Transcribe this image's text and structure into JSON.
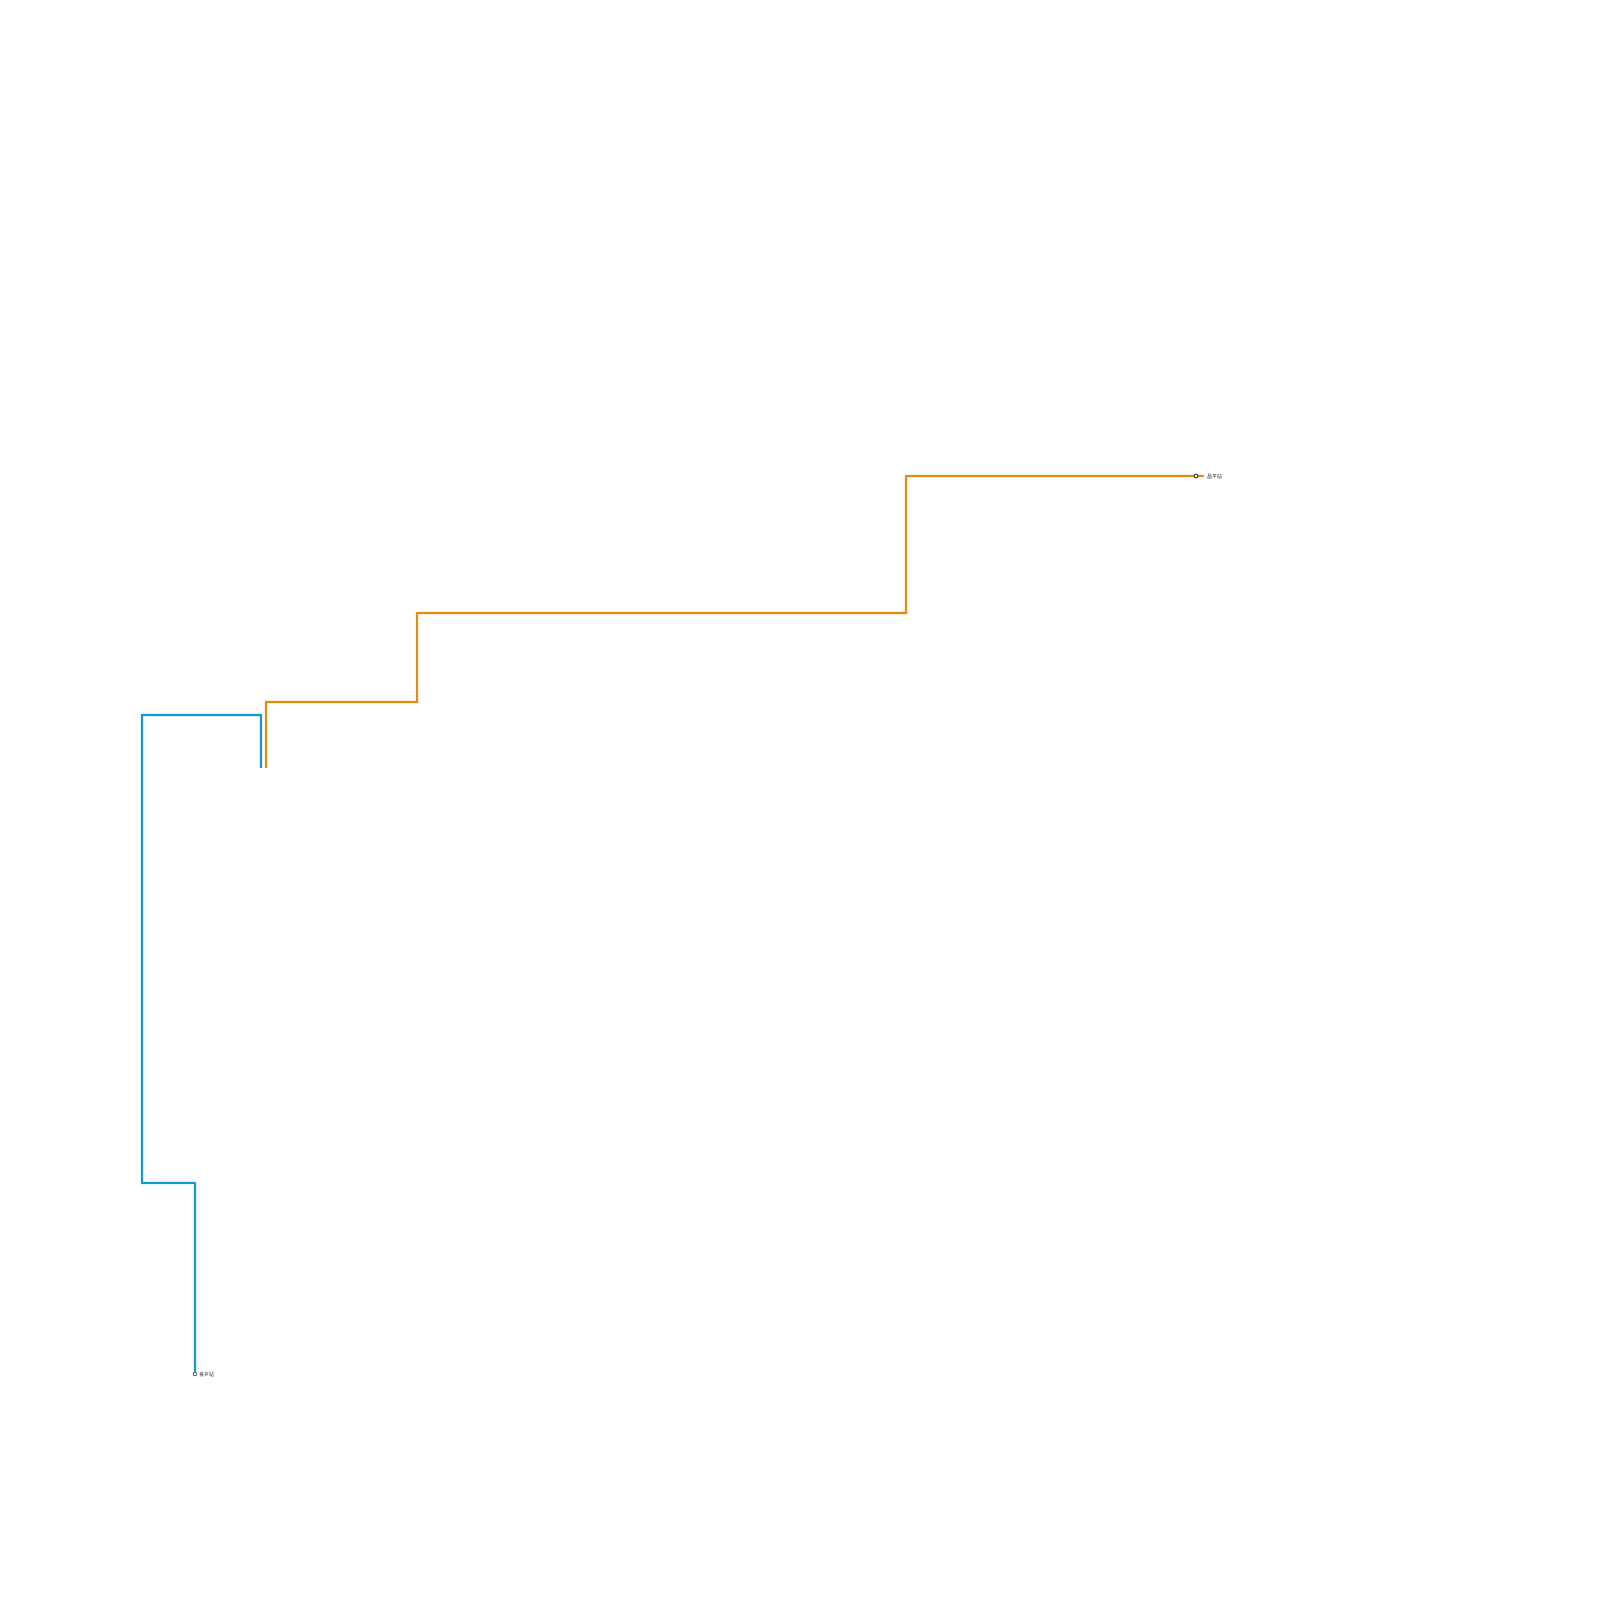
{
  "map": {
    "lines": [
      {
        "name_id": "blue-line",
        "color": "#0e9ad7"
      },
      {
        "name_id": "orange-line",
        "color": "#e88a0c"
      }
    ],
    "stations": [
      {
        "label": "昌平站",
        "line": "orange-line",
        "type": "terminal"
      },
      {
        "label": "良乡站",
        "line": "blue-line",
        "type": "terminal"
      }
    ]
  }
}
